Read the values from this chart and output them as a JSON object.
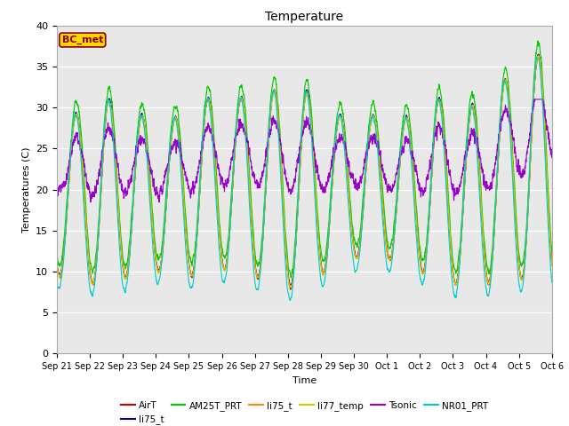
{
  "title": "Temperature",
  "xlabel": "Time",
  "ylabel": "Temperatures (C)",
  "ylim": [
    0,
    40
  ],
  "bg_color": "#e8e8e8",
  "fig_bg": "#ffffff",
  "grid_color": "#ffffff",
  "station_label": "BC_met",
  "legend_entries": [
    "AirT",
    "li75_t",
    "AM25T_PRT",
    "li75_t",
    "li77_temp",
    "Tsonic",
    "NR01_PRT"
  ],
  "line_colors": [
    "#cc0000",
    "#000099",
    "#00cc00",
    "#ff8800",
    "#cccc00",
    "#9900cc",
    "#00cccc"
  ],
  "xtick_labels": [
    "Sep 21",
    "Sep 22",
    "Sep 23",
    "Sep 24",
    "Sep 25",
    "Sep 26",
    "Sep 27",
    "Sep 28",
    "Sep 29",
    "Sep 30",
    "Oct 1",
    "Oct 2",
    "Oct 3",
    "Oct 4",
    "Oct 5",
    "Oct 6"
  ],
  "n_days": 15
}
